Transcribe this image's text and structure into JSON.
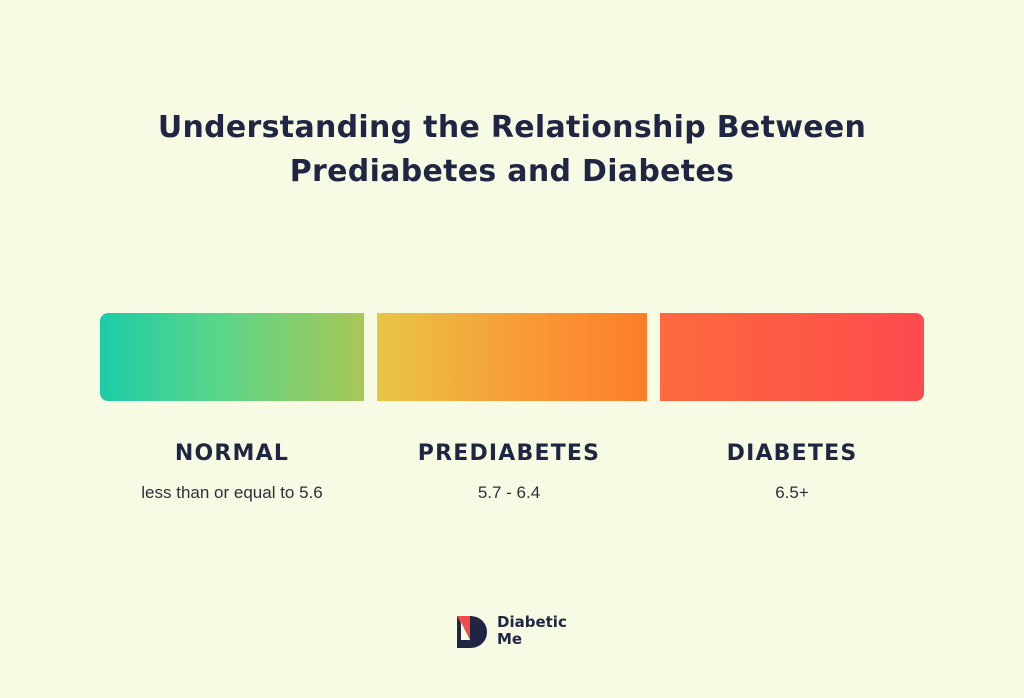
{
  "title": {
    "line1": "Understanding the Relationship Between",
    "line2": "Prediabetes and Diabetes"
  },
  "categories": [
    {
      "label": "NORMAL",
      "range": "less than or equal to 5.6"
    },
    {
      "label": "PREDIABETES",
      "range": "5.7 - 6.4"
    },
    {
      "label": "DIABETES",
      "range": "6.5+"
    }
  ],
  "colors": {
    "background": "#f8fbe3",
    "text": "#1f2644",
    "normal": [
      "#1dcca8",
      "#a8c757"
    ],
    "prediabetes": [
      "#e7c646",
      "#fd7d2a"
    ],
    "diabetes": [
      "#fd6a3d",
      "#fd4a4f"
    ],
    "logo_red": "#f04a4a"
  },
  "logo": {
    "line1": "Diabetic",
    "line2": "Me",
    "icon": "diabeticme-logo-icon"
  }
}
